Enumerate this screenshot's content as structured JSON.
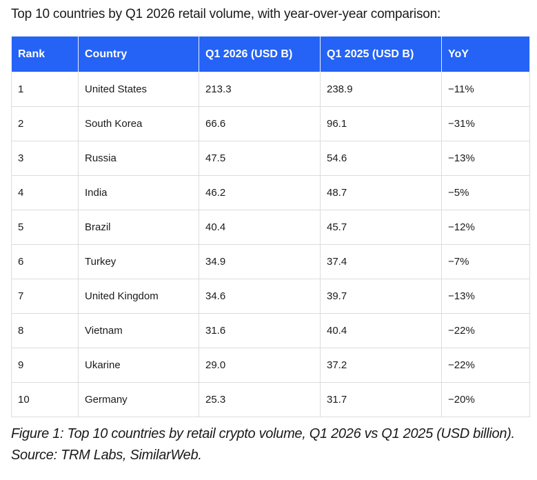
{
  "intro": "Top 10 countries by Q1 2026 retail volume, with year-over-year comparison:",
  "table": {
    "headers": [
      "Rank",
      "Country",
      "Q1 2026 (USD B)",
      "Q1 2025 (USD B)",
      "YoY"
    ],
    "rows": [
      [
        "1",
        "United States",
        "213.3",
        "238.9",
        "−11%"
      ],
      [
        "2",
        "South Korea",
        "66.6",
        "96.1",
        "−31%"
      ],
      [
        "3",
        "Russia",
        "47.5",
        "54.6",
        "−13%"
      ],
      [
        "4",
        "India",
        "46.2",
        "48.7",
        "−5%"
      ],
      [
        "5",
        "Brazil",
        "40.4",
        "45.7",
        "−12%"
      ],
      [
        "6",
        "Turkey",
        "34.9",
        "37.4",
        "−7%"
      ],
      [
        "7",
        "United Kingdom",
        "34.6",
        "39.7",
        "−13%"
      ],
      [
        "8",
        "Vietnam",
        "31.6",
        "40.4",
        "−22%"
      ],
      [
        "9",
        "Ukarine",
        "29.0",
        "37.2",
        "−22%"
      ],
      [
        "10",
        "Germany",
        "25.3",
        "31.7",
        "−20%"
      ]
    ]
  },
  "caption": "Figure 1: Top 10 countries by retail crypto volume, Q1 2026 vs Q1 2025 (USD billion). Source: TRM Labs, SimilarWeb.",
  "colors": {
    "header_bg": "#2463f6",
    "header_text": "#ffffff",
    "border": "#dcdcdc"
  }
}
